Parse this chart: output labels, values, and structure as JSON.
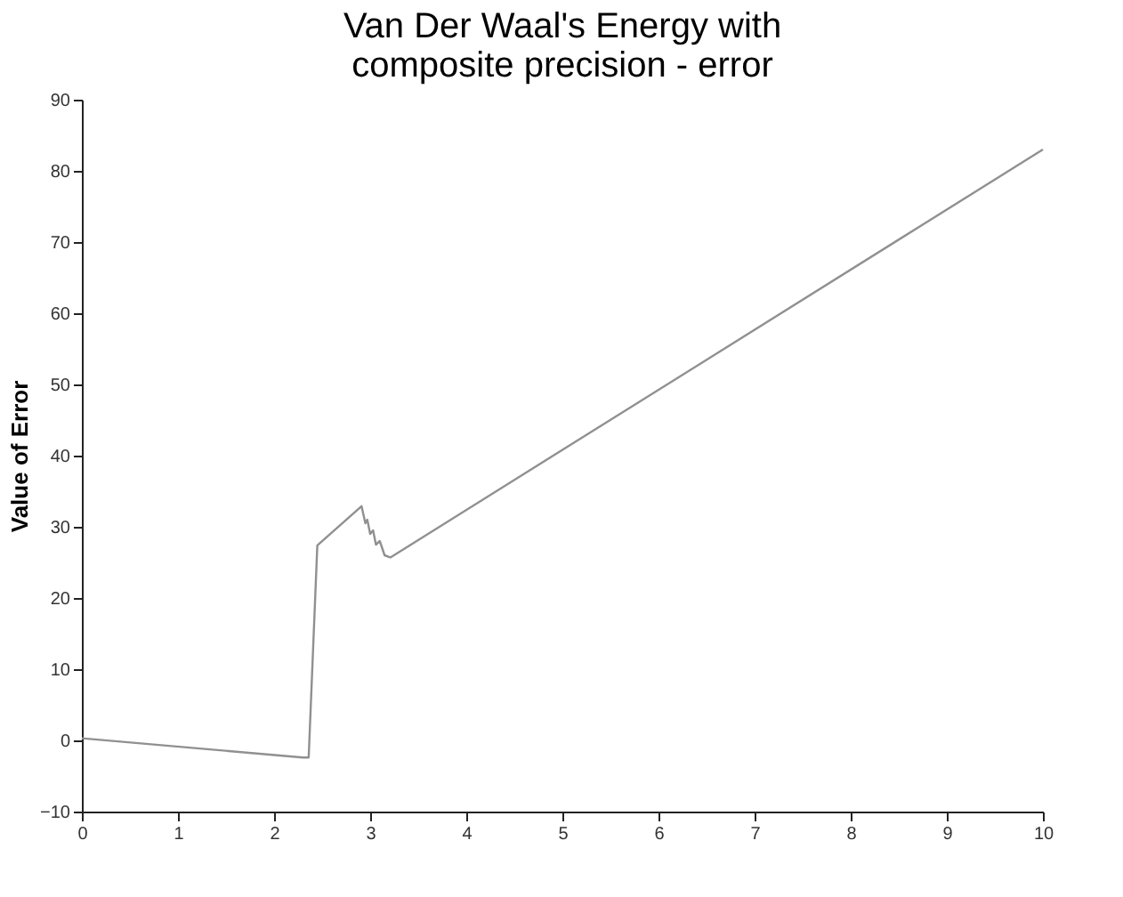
{
  "chart_data": {
    "type": "line",
    "title": "Van Der Waal's Energy with composite precision - error",
    "ylabel": "Value of Error",
    "x": [
      0,
      2.3,
      2.36,
      2.45,
      2.91,
      2.95,
      2.97,
      3.0,
      3.03,
      3.06,
      3.1,
      3.15,
      3.21,
      10
    ],
    "series": [
      {
        "color": "#909090",
        "values": [
          0.3,
          -2.4,
          -2.4,
          27.4,
          32.9,
          30.5,
          31.0,
          29.0,
          29.5,
          27.5,
          28.0,
          26.0,
          25.7,
          83
        ]
      }
    ],
    "xlim": [
      0,
      10
    ],
    "xticks": [
      0,
      1,
      2,
      3,
      4,
      5,
      6,
      7,
      8,
      9,
      10
    ],
    "ylim": [
      -10,
      90
    ],
    "yticks": [
      -10,
      0,
      10,
      20,
      30,
      40,
      50,
      60,
      70,
      80,
      90
    ],
    "grid": false,
    "marker": "none",
    "line_style": "solid"
  }
}
